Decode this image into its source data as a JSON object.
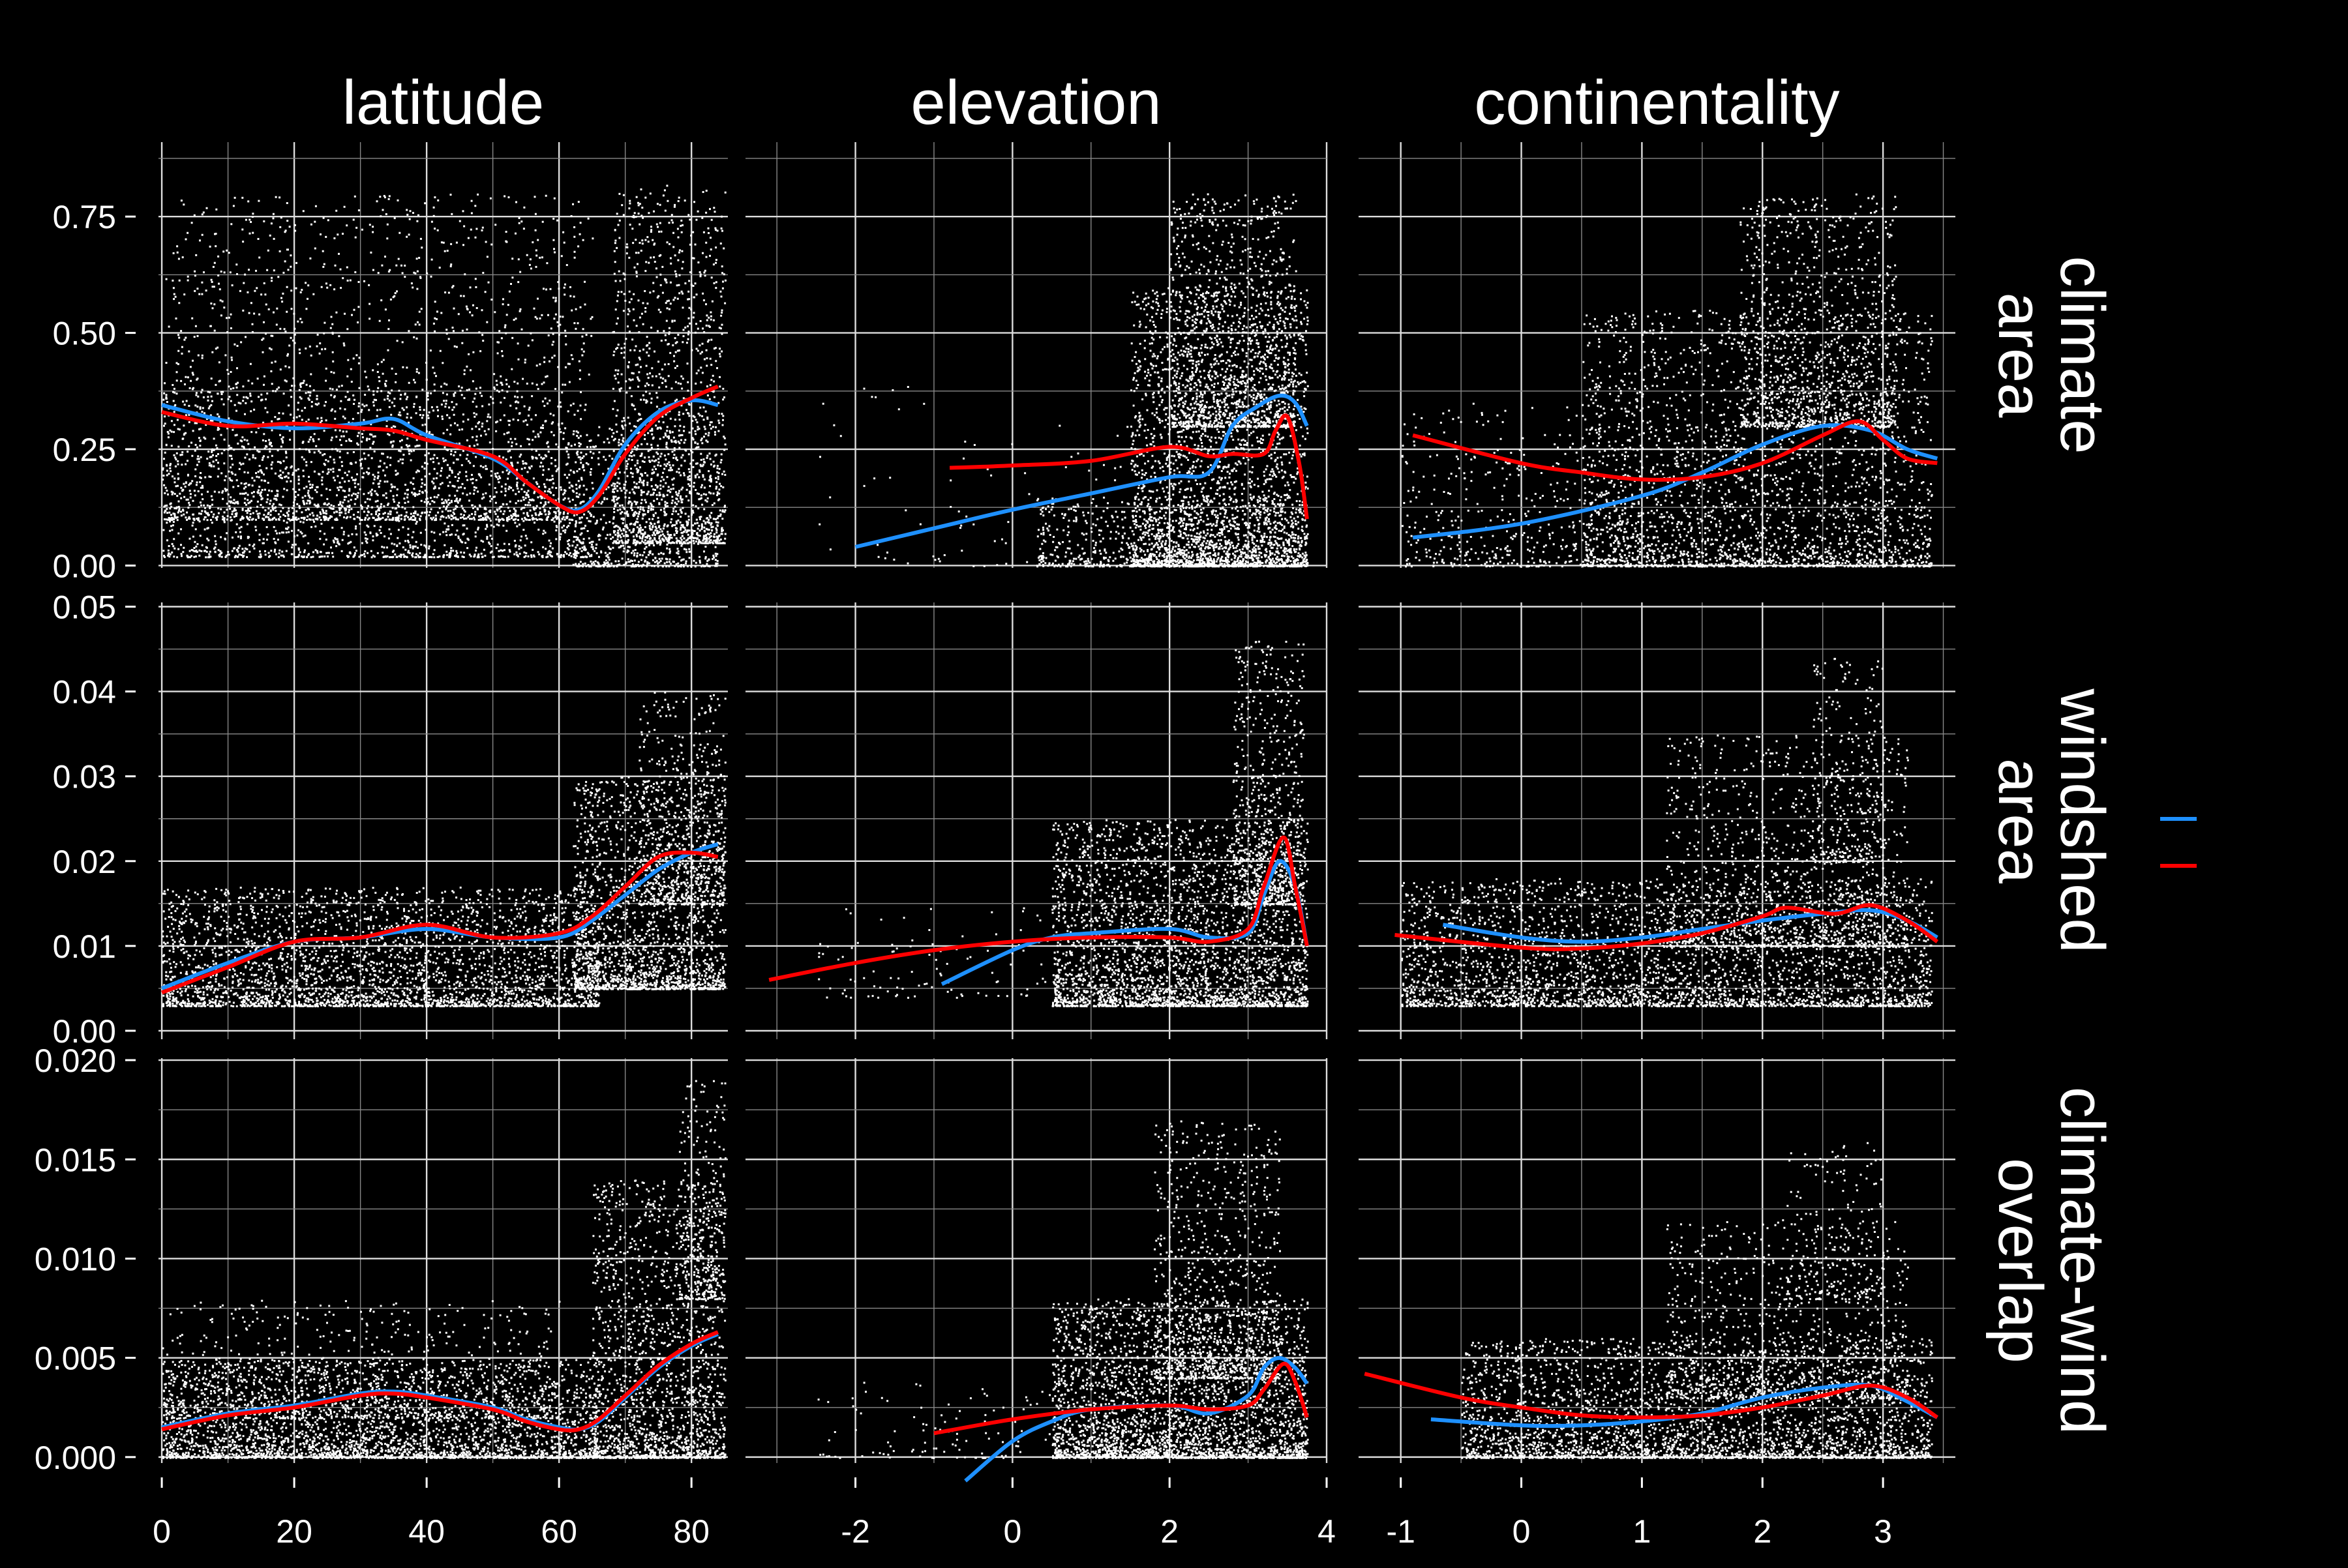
{
  "chart_data": {
    "type": "scatter",
    "background": "#000000",
    "point_color": "#ffffff",
    "grid": true,
    "legend": {
      "placement": "right",
      "entries": [
        {
          "name": "",
          "color": "#1e90ff"
        },
        {
          "name": "",
          "color": "#ff0000"
        }
      ]
    },
    "columns": [
      {
        "label": "latitude",
        "xlim": [
          -0.5,
          85.5
        ],
        "ticks": [
          "0",
          "20",
          "40",
          "60",
          "80"
        ],
        "tick_values": [
          0,
          20,
          40,
          60,
          80
        ]
      },
      {
        "label": "elevation",
        "xlim": [
          -3.4,
          4.0
        ],
        "ticks": [
          "-2",
          "0",
          "2",
          "4"
        ],
        "tick_values": [
          -2,
          0,
          2,
          4
        ]
      },
      {
        "label": "continentality",
        "xlim": [
          -1.35,
          3.6
        ],
        "ticks": [
          "-1",
          "0",
          "1",
          "2",
          "3"
        ],
        "tick_values": [
          -1,
          0,
          1,
          2,
          3
        ]
      }
    ],
    "rows": [
      {
        "label_lines": [
          "climate",
          "area"
        ],
        "ylim": [
          -0.005,
          0.91
        ],
        "ticks": [
          "0.00",
          "0.25",
          "0.50",
          "0.75"
        ],
        "tick_values": [
          0,
          0.25,
          0.5,
          0.75
        ]
      },
      {
        "label_lines": [
          "windshed",
          "area"
        ],
        "ylim": [
          -0.001,
          0.0505
        ],
        "ticks": [
          "0.00",
          "0.01",
          "0.02",
          "0.03",
          "0.04",
          "0.05"
        ],
        "tick_values": [
          0,
          0.01,
          0.02,
          0.03,
          0.04,
          0.05
        ]
      },
      {
        "label_lines": [
          "climate-wind",
          "overlap"
        ],
        "ylim": [
          -0.0003,
          0.0201
        ],
        "ticks": [
          "0.000",
          "0.005",
          "0.010",
          "0.015",
          "0.020"
        ],
        "tick_values": [
          0,
          0.005,
          0.01,
          0.015,
          0.02
        ]
      }
    ],
    "panels": [
      {
        "row": 0,
        "col": 0,
        "series": [
          {
            "color": "#1e90ff",
            "x": [
              0,
              10,
              20,
              30,
              35,
              40,
              50,
              55,
              60,
              63,
              66,
              70,
              75,
              80,
              84
            ],
            "y": [
              0.345,
              0.31,
              0.295,
              0.305,
              0.315,
              0.28,
              0.23,
              0.18,
              0.13,
              0.12,
              0.16,
              0.26,
              0.33,
              0.355,
              0.345
            ]
          },
          {
            "color": "#ff0000",
            "x": [
              0,
              10,
              20,
              30,
              35,
              40,
              50,
              55,
              60,
              63,
              66,
              70,
              75,
              80,
              84
            ],
            "y": [
              0.33,
              0.3,
              0.305,
              0.295,
              0.29,
              0.27,
              0.235,
              0.18,
              0.13,
              0.115,
              0.15,
              0.24,
              0.32,
              0.36,
              0.385
            ]
          }
        ],
        "cloud": [
          {
            "x": [
              0,
              65
            ],
            "y": [
              0.02,
              0.8
            ],
            "n": 2200
          },
          {
            "x": [
              0,
              62
            ],
            "y": [
              0.1,
              0.4
            ],
            "n": 1500
          },
          {
            "x": [
              62,
              84
            ],
            "y": [
              0.0,
              0.3
            ],
            "n": 700
          },
          {
            "x": [
              68,
              85
            ],
            "y": [
              0.05,
              0.82
            ],
            "n": 1300
          }
        ]
      },
      {
        "row": 0,
        "col": 1,
        "series": [
          {
            "color": "#1e90ff",
            "x": [
              -2,
              -1,
              0,
              1,
              2,
              2.5,
              2.8,
              3.1,
              3.4,
              3.6,
              3.75
            ],
            "y": [
              0.04,
              0.08,
              0.12,
              0.155,
              0.19,
              0.2,
              0.3,
              0.34,
              0.365,
              0.35,
              0.3
            ]
          },
          {
            "color": "#ff0000",
            "x": [
              -0.8,
              0,
              1,
              2,
              2.5,
              2.8,
              3.2,
              3.35,
              3.5,
              3.65,
              3.75
            ],
            "y": [
              0.21,
              0.215,
              0.225,
              0.255,
              0.235,
              0.24,
              0.24,
              0.29,
              0.32,
              0.22,
              0.1
            ]
          }
        ],
        "cloud": [
          {
            "x": [
              1.5,
              3.75
            ],
            "y": [
              0.0,
              0.6
            ],
            "n": 2500
          },
          {
            "x": [
              2.0,
              3.6
            ],
            "y": [
              0.3,
              0.8
            ],
            "n": 1200
          },
          {
            "x": [
              0.3,
              3.7
            ],
            "y": [
              0.0,
              0.15
            ],
            "n": 700
          },
          {
            "x": [
              -2.5,
              1.5
            ],
            "y": [
              0.0,
              0.4
            ],
            "n": 80
          }
        ]
      },
      {
        "row": 0,
        "col": 2,
        "series": [
          {
            "color": "#1e90ff",
            "x": [
              -0.9,
              0,
              1,
              1.5,
              2,
              2.5,
              2.9,
              3.2,
              3.45
            ],
            "y": [
              0.06,
              0.09,
              0.15,
              0.2,
              0.26,
              0.3,
              0.29,
              0.25,
              0.23
            ]
          },
          {
            "color": "#ff0000",
            "x": [
              -0.9,
              0,
              0.5,
              1,
              1.5,
              2,
              2.5,
              2.8,
              3.0,
              3.2,
              3.45
            ],
            "y": [
              0.28,
              0.22,
              0.2,
              0.185,
              0.19,
              0.22,
              0.28,
              0.31,
              0.27,
              0.23,
              0.22
            ]
          }
        ],
        "cloud": [
          {
            "x": [
              0.5,
              3.4
            ],
            "y": [
              0.0,
              0.55
            ],
            "n": 2500
          },
          {
            "x": [
              1.8,
              3.1
            ],
            "y": [
              0.3,
              0.8
            ],
            "n": 1100
          },
          {
            "x": [
              -1.0,
              1.0
            ],
            "y": [
              0.0,
              0.35
            ],
            "n": 500
          }
        ]
      },
      {
        "row": 1,
        "col": 0,
        "series": [
          {
            "color": "#1e90ff",
            "x": [
              0,
              10,
              20,
              30,
              40,
              50,
              60,
              65,
              70,
              75,
              80,
              84
            ],
            "y": [
              0.005,
              0.008,
              0.0105,
              0.011,
              0.012,
              0.011,
              0.011,
              0.013,
              0.016,
              0.019,
              0.021,
              0.022
            ]
          },
          {
            "color": "#ff0000",
            "x": [
              0,
              10,
              20,
              30,
              40,
              50,
              60,
              65,
              70,
              75,
              80,
              84
            ],
            "y": [
              0.0045,
              0.0075,
              0.0105,
              0.011,
              0.0125,
              0.011,
              0.0115,
              0.0135,
              0.017,
              0.0205,
              0.021,
              0.0205
            ]
          }
        ],
        "cloud": [
          {
            "x": [
              0,
              66
            ],
            "y": [
              0.003,
              0.017
            ],
            "n": 3000
          },
          {
            "x": [
              62,
              85
            ],
            "y": [
              0.005,
              0.03
            ],
            "n": 1800
          },
          {
            "x": [
              72,
              85
            ],
            "y": [
              0.015,
              0.04
            ],
            "n": 600
          }
        ]
      },
      {
        "row": 1,
        "col": 1,
        "series": [
          {
            "color": "#1e90ff",
            "x": [
              -0.9,
              0,
              0.5,
              1,
              2,
              2.5,
              3.0,
              3.2,
              3.4,
              3.6,
              3.75
            ],
            "y": [
              0.0055,
              0.0095,
              0.011,
              0.0115,
              0.012,
              0.011,
              0.0115,
              0.016,
              0.02,
              0.017,
              0.01
            ]
          },
          {
            "color": "#ff0000",
            "x": [
              -3.1,
              -2,
              -1,
              0,
              1,
              2,
              2.5,
              3.0,
              3.2,
              3.45,
              3.6,
              3.75
            ],
            "y": [
              0.006,
              0.008,
              0.0095,
              0.0105,
              0.011,
              0.011,
              0.0105,
              0.012,
              0.017,
              0.0228,
              0.017,
              0.01
            ]
          }
        ],
        "cloud": [
          {
            "x": [
              0.5,
              3.75
            ],
            "y": [
              0.003,
              0.025
            ],
            "n": 3000
          },
          {
            "x": [
              2.8,
              3.7
            ],
            "y": [
              0.015,
              0.046
            ],
            "n": 700
          },
          {
            "x": [
              -2.5,
              0.5
            ],
            "y": [
              0.004,
              0.015
            ],
            "n": 100
          }
        ]
      },
      {
        "row": 1,
        "col": 2,
        "series": [
          {
            "color": "#1e90ff",
            "x": [
              -0.65,
              0,
              0.5,
              1,
              1.5,
              2,
              2.5,
              2.9,
              3.2,
              3.45
            ],
            "y": [
              0.0125,
              0.011,
              0.0105,
              0.011,
              0.012,
              0.013,
              0.0138,
              0.0142,
              0.013,
              0.011
            ]
          },
          {
            "color": "#ff0000",
            "x": [
              -1.05,
              0,
              0.5,
              1,
              1.5,
              2,
              2.2,
              2.6,
              2.9,
              3.2,
              3.45
            ],
            "y": [
              0.0113,
              0.0098,
              0.0097,
              0.0103,
              0.0115,
              0.0135,
              0.0145,
              0.0138,
              0.0148,
              0.013,
              0.0105
            ]
          }
        ],
        "cloud": [
          {
            "x": [
              -1.0,
              3.4
            ],
            "y": [
              0.003,
              0.018
            ],
            "n": 3200
          },
          {
            "x": [
              1.2,
              3.2
            ],
            "y": [
              0.01,
              0.035
            ],
            "n": 1200
          },
          {
            "x": [
              2.4,
              3.0
            ],
            "y": [
              0.02,
              0.044
            ],
            "n": 250
          }
        ]
      },
      {
        "row": 2,
        "col": 0,
        "series": [
          {
            "color": "#1e90ff",
            "x": [
              0,
              10,
              20,
              30,
              35,
              40,
              50,
              55,
              60,
              63,
              66,
              70,
              75,
              80,
              84
            ],
            "y": [
              0.0015,
              0.0022,
              0.0026,
              0.0032,
              0.0033,
              0.0031,
              0.0025,
              0.0019,
              0.0015,
              0.0014,
              0.0018,
              0.003,
              0.0045,
              0.0056,
              0.0062
            ]
          },
          {
            "color": "#ff0000",
            "x": [
              0,
              10,
              20,
              30,
              35,
              40,
              50,
              55,
              60,
              63,
              66,
              70,
              75,
              80,
              84
            ],
            "y": [
              0.0014,
              0.0021,
              0.0025,
              0.0031,
              0.0032,
              0.003,
              0.0024,
              0.0018,
              0.0014,
              0.0014,
              0.0019,
              0.0031,
              0.0046,
              0.0057,
              0.0063
            ]
          }
        ],
        "cloud": [
          {
            "x": [
              0,
              66
            ],
            "y": [
              0.0,
              0.005
            ],
            "n": 3000
          },
          {
            "x": [
              0,
              60
            ],
            "y": [
              0.002,
              0.008
            ],
            "n": 700
          },
          {
            "x": [
              65,
              85
            ],
            "y": [
              0.0,
              0.014
            ],
            "n": 1700
          },
          {
            "x": [
              78,
              85
            ],
            "y": [
              0.008,
              0.019
            ],
            "n": 300
          }
        ]
      },
      {
        "row": 2,
        "col": 1,
        "series": [
          {
            "color": "#1e90ff",
            "x": [
              -0.6,
              0,
              0.5,
              1,
              2,
              2.5,
              3.0,
              3.2,
              3.4,
              3.6,
              3.75
            ],
            "y": [
              -0.0012,
              0.0008,
              0.0018,
              0.0024,
              0.0026,
              0.0022,
              0.0031,
              0.0045,
              0.005,
              0.0045,
              0.0037
            ]
          },
          {
            "color": "#ff0000",
            "x": [
              -1.0,
              0,
              1,
              2,
              2.5,
              3.0,
              3.2,
              3.45,
              3.6,
              3.75
            ],
            "y": [
              0.0012,
              0.0019,
              0.0024,
              0.0026,
              0.0024,
              0.0026,
              0.0034,
              0.0047,
              0.0038,
              0.002
            ]
          }
        ],
        "cloud": [
          {
            "x": [
              0.5,
              3.75
            ],
            "y": [
              0.0,
              0.008
            ],
            "n": 3000
          },
          {
            "x": [
              1.8,
              3.4
            ],
            "y": [
              0.004,
              0.017
            ],
            "n": 900
          },
          {
            "x": [
              -2.5,
              0.5
            ],
            "y": [
              0.0,
              0.004
            ],
            "n": 100
          }
        ]
      },
      {
        "row": 2,
        "col": 2,
        "series": [
          {
            "color": "#1e90ff",
            "x": [
              -0.75,
              0,
              0.5,
              1,
              1.5,
              2,
              2.5,
              2.9,
              3.2,
              3.45
            ],
            "y": [
              0.0019,
              0.0016,
              0.0016,
              0.0018,
              0.0022,
              0.003,
              0.0035,
              0.0036,
              0.0028,
              0.002
            ]
          },
          {
            "color": "#ff0000",
            "x": [
              -1.3,
              -0.5,
              0,
              0.5,
              1,
              1.5,
              2,
              2.5,
              2.9,
              3.2,
              3.45
            ],
            "y": [
              0.0042,
              0.003,
              0.0025,
              0.0021,
              0.002,
              0.0021,
              0.0025,
              0.0031,
              0.0036,
              0.003,
              0.002
            ]
          }
        ],
        "cloud": [
          {
            "x": [
              -0.5,
              3.4
            ],
            "y": [
              0.0,
              0.006
            ],
            "n": 3000
          },
          {
            "x": [
              1.2,
              3.2
            ],
            "y": [
              0.003,
              0.012
            ],
            "n": 900
          },
          {
            "x": [
              2.2,
              3.0
            ],
            "y": [
              0.008,
              0.016
            ],
            "n": 200
          }
        ]
      }
    ]
  }
}
